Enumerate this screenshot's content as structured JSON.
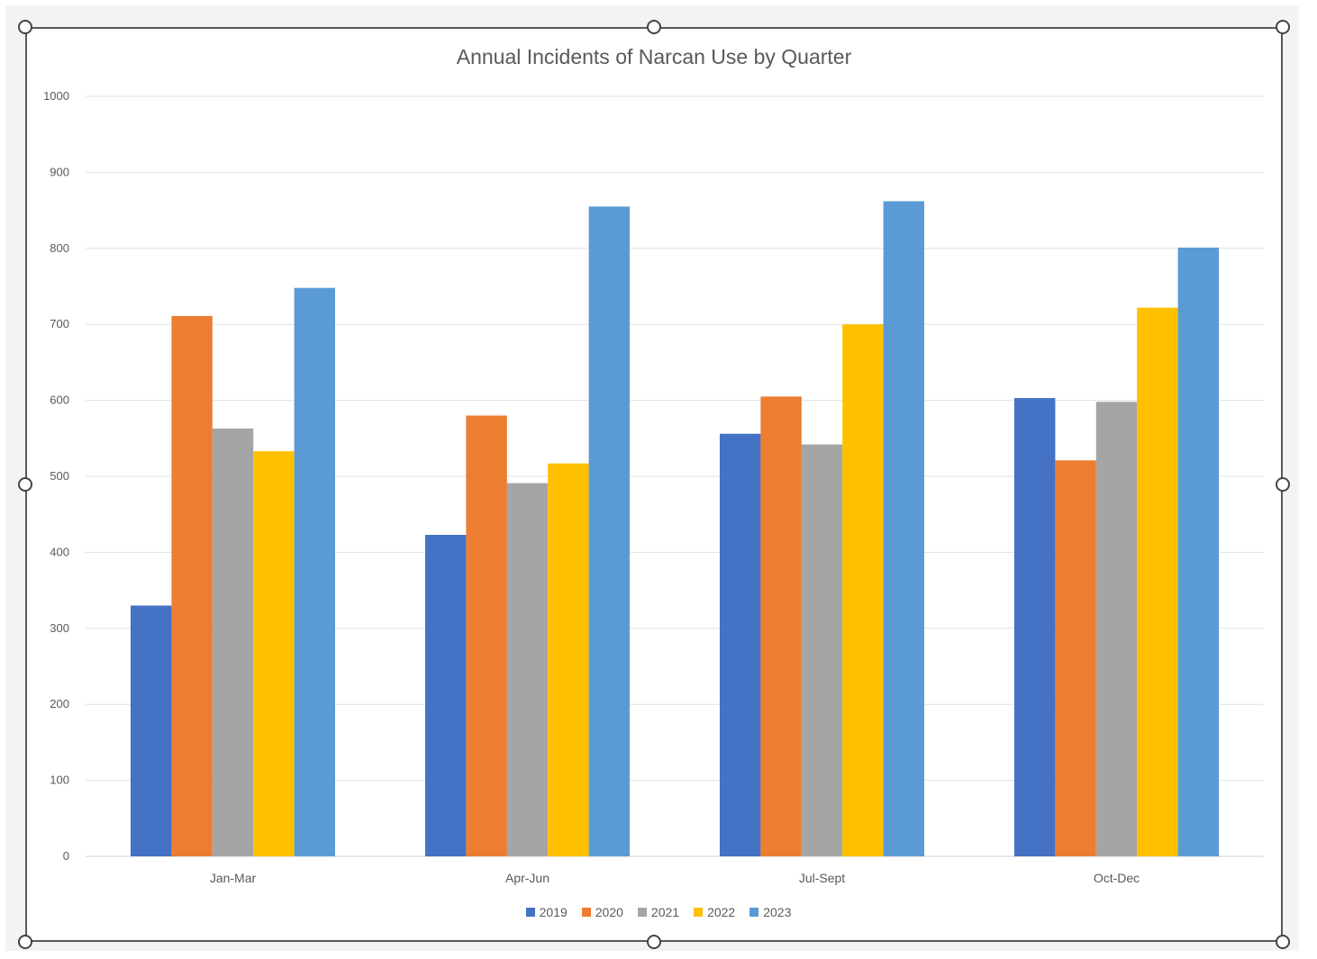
{
  "chart_data": {
    "type": "bar",
    "title": "Annual Incidents of Narcan Use by Quarter",
    "xlabel": "",
    "ylabel": "",
    "ylim": [
      0,
      1000
    ],
    "yticks": [
      0,
      100,
      200,
      300,
      400,
      500,
      600,
      700,
      800,
      900,
      1000
    ],
    "grid": true,
    "legend_position": "bottom",
    "categories": [
      "Jan-Mar",
      "Apr-Jun",
      "Jul-Sept",
      "Oct-Dec"
    ],
    "series": [
      {
        "name": "2019",
        "color": "#4472C4",
        "values": [
          330,
          423,
          556,
          603
        ]
      },
      {
        "name": "2020",
        "color": "#ED7D31",
        "values": [
          711,
          580,
          605,
          521
        ]
      },
      {
        "name": "2021",
        "color": "#A5A5A5",
        "values": [
          563,
          491,
          542,
          598
        ]
      },
      {
        "name": "2022",
        "color": "#FFC000",
        "values": [
          533,
          517,
          700,
          722
        ]
      },
      {
        "name": "2023",
        "color": "#5B9BD5",
        "values": [
          748,
          855,
          862,
          801
        ]
      }
    ]
  }
}
